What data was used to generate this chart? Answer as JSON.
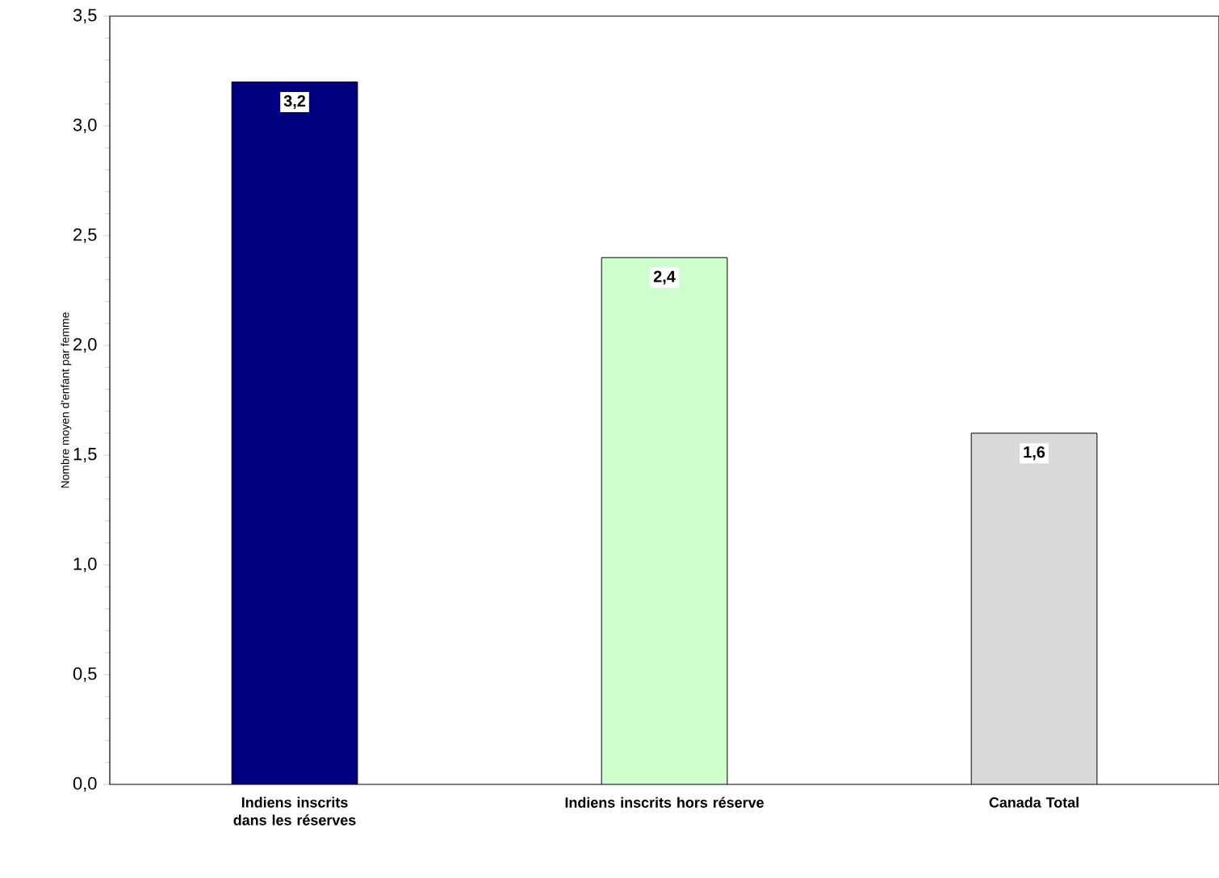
{
  "chart_data": {
    "type": "bar",
    "ylabel": "Nombre moyen d'enfant par femme",
    "categories": [
      "Indiens inscrits dans les réserves",
      "Indiens inscrits hors réserve",
      "Canada Total"
    ],
    "values": [
      3.2,
      2.4,
      1.6
    ],
    "colors": [
      "#000080",
      "#ccffcc",
      "#d9d9d9"
    ],
    "value_labels": [
      "3,2",
      "2,4",
      "1,6"
    ],
    "ylim": [
      0,
      3.5
    ],
    "yticks": [
      {
        "value": 0,
        "label": "0,0"
      },
      {
        "value": 0.5,
        "label": "0,5"
      },
      {
        "value": 1,
        "label": "1,0"
      },
      {
        "value": 1.5,
        "label": "1,5"
      },
      {
        "value": 2,
        "label": "2,0"
      },
      {
        "value": 2.5,
        "label": "2,5"
      },
      {
        "value": 3,
        "label": "3,0"
      },
      {
        "value": 3.5,
        "label": "3,5"
      }
    ],
    "grid": false
  }
}
